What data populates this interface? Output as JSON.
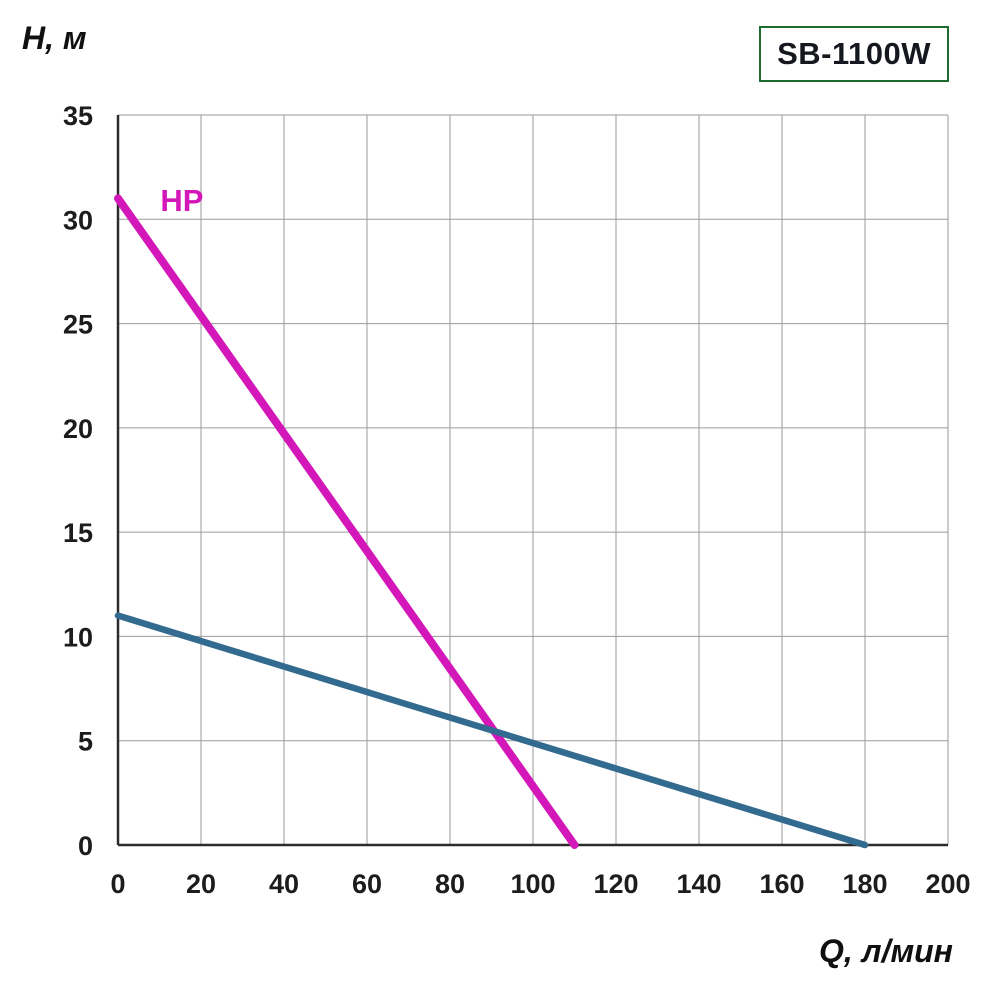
{
  "header": {
    "model_badge": "SB-1100W"
  },
  "chart_data": {
    "type": "line",
    "title": "SB-1100W",
    "xlabel": "Q, л/мин",
    "ylabel": "Н, м",
    "xlim": [
      0,
      200
    ],
    "ylim": [
      0,
      35
    ],
    "xticks": [
      0,
      20,
      40,
      60,
      80,
      100,
      120,
      140,
      160,
      180,
      200
    ],
    "yticks": [
      0,
      5,
      10,
      15,
      20,
      25,
      30,
      35
    ],
    "grid": true,
    "series": [
      {
        "name": "HP",
        "color": "#d417b8",
        "points": [
          [
            0,
            31
          ],
          [
            110,
            0
          ]
        ],
        "label": {
          "text": "HP",
          "x": 10.2,
          "y": 30.4
        }
      },
      {
        "name": "",
        "color": "#336a8f",
        "points": [
          [
            0,
            11
          ],
          [
            180,
            0
          ]
        ]
      }
    ]
  }
}
